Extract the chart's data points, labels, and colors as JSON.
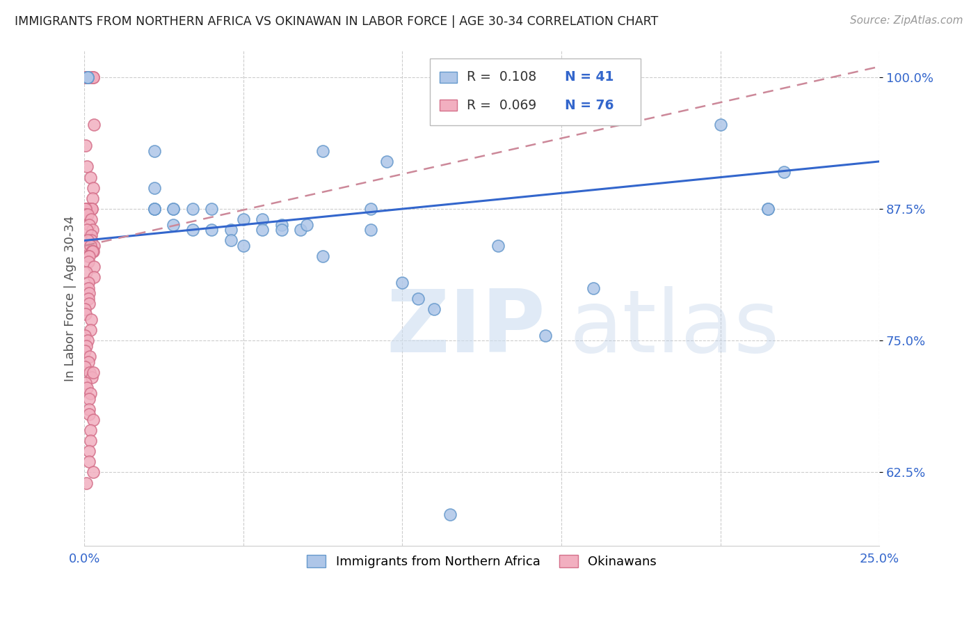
{
  "title": "IMMIGRANTS FROM NORTHERN AFRICA VS OKINAWAN IN LABOR FORCE | AGE 30-34 CORRELATION CHART",
  "source": "Source: ZipAtlas.com",
  "ylabel": "In Labor Force | Age 30-34",
  "xlim": [
    0.0,
    0.25
  ],
  "ylim": [
    0.555,
    1.025
  ],
  "yticks": [
    0.625,
    0.75,
    0.875,
    1.0
  ],
  "ytick_labels": [
    "62.5%",
    "75.0%",
    "87.5%",
    "100.0%"
  ],
  "xticks": [
    0.0,
    0.05,
    0.1,
    0.15,
    0.2,
    0.25
  ],
  "xtick_labels": [
    "0.0%",
    "",
    "",
    "",
    "",
    "25.0%"
  ],
  "blue_color": "#aec6e8",
  "pink_color": "#f2afc0",
  "trend_blue": "#3366cc",
  "trend_pink": "#cc8899",
  "axis_color": "#3366cc",
  "blue_points_x": [
    0.001,
    0.001,
    0.001,
    0.022,
    0.022,
    0.022,
    0.022,
    0.022,
    0.028,
    0.028,
    0.028,
    0.034,
    0.034,
    0.04,
    0.04,
    0.046,
    0.046,
    0.05,
    0.05,
    0.056,
    0.056,
    0.062,
    0.062,
    0.068,
    0.07,
    0.075,
    0.075,
    0.09,
    0.09,
    0.095,
    0.1,
    0.105,
    0.11,
    0.115,
    0.13,
    0.145,
    0.16,
    0.2,
    0.215,
    0.215,
    0.22
  ],
  "blue_points_y": [
    1.0,
    1.0,
    1.0,
    0.93,
    0.895,
    0.875,
    0.875,
    0.875,
    0.875,
    0.875,
    0.86,
    0.875,
    0.855,
    0.875,
    0.855,
    0.855,
    0.845,
    0.84,
    0.865,
    0.865,
    0.855,
    0.86,
    0.855,
    0.855,
    0.86,
    0.93,
    0.83,
    0.875,
    0.855,
    0.92,
    0.805,
    0.79,
    0.78,
    0.585,
    0.84,
    0.755,
    0.8,
    0.955,
    0.875,
    0.875,
    0.91
  ],
  "pink_points_x": [
    0.0,
    0.0,
    0.0,
    0.0,
    0.0,
    0.0,
    0.0,
    0.0,
    0.0,
    0.0,
    0.0,
    0.0,
    0.0,
    0.0,
    0.0,
    0.0,
    0.0,
    0.0,
    0.0,
    0.0,
    0.0,
    0.0,
    0.0,
    0.0,
    0.0,
    0.0,
    0.0,
    0.0,
    0.0,
    0.0,
    0.0,
    0.0,
    0.0,
    0.0,
    0.0,
    0.0,
    0.0,
    0.0,
    0.0,
    0.0,
    0.0,
    0.0,
    0.0,
    0.0,
    0.0,
    0.0,
    0.0,
    0.0,
    0.0,
    0.0,
    0.0,
    0.0,
    0.0,
    0.0,
    0.0,
    0.0,
    0.0,
    0.0,
    0.0,
    0.0,
    0.0,
    0.0,
    0.0,
    0.0,
    0.0,
    0.0,
    0.0,
    0.0,
    0.0,
    0.0,
    0.0,
    0.0,
    0.0,
    0.0,
    0.0,
    0.0
  ],
  "pink_points_y": [
    1.0,
    1.0,
    1.0,
    1.0,
    1.0,
    1.0,
    1.0,
    1.0,
    0.955,
    0.935,
    0.915,
    0.905,
    0.895,
    0.885,
    0.875,
    0.875,
    0.875,
    0.875,
    0.875,
    0.875,
    0.875,
    0.875,
    0.875,
    0.87,
    0.87,
    0.865,
    0.86,
    0.855,
    0.855,
    0.85,
    0.845,
    0.845,
    0.84,
    0.84,
    0.84,
    0.835,
    0.835,
    0.835,
    0.83,
    0.83,
    0.825,
    0.82,
    0.815,
    0.81,
    0.805,
    0.8,
    0.795,
    0.79,
    0.785,
    0.78,
    0.775,
    0.77,
    0.76,
    0.755,
    0.75,
    0.745,
    0.74,
    0.735,
    0.73,
    0.725,
    0.72,
    0.715,
    0.71,
    0.705,
    0.7,
    0.695,
    0.685,
    0.68,
    0.675,
    0.665,
    0.655,
    0.645,
    0.635,
    0.625,
    0.615,
    0.72
  ],
  "blue_trend_x0": 0.0,
  "blue_trend_y0": 0.845,
  "blue_trend_x1": 0.25,
  "blue_trend_y1": 0.92,
  "pink_trend_x0": 0.0,
  "pink_trend_y0": 0.84,
  "pink_trend_x1": 0.25,
  "pink_trend_y1": 1.01
}
